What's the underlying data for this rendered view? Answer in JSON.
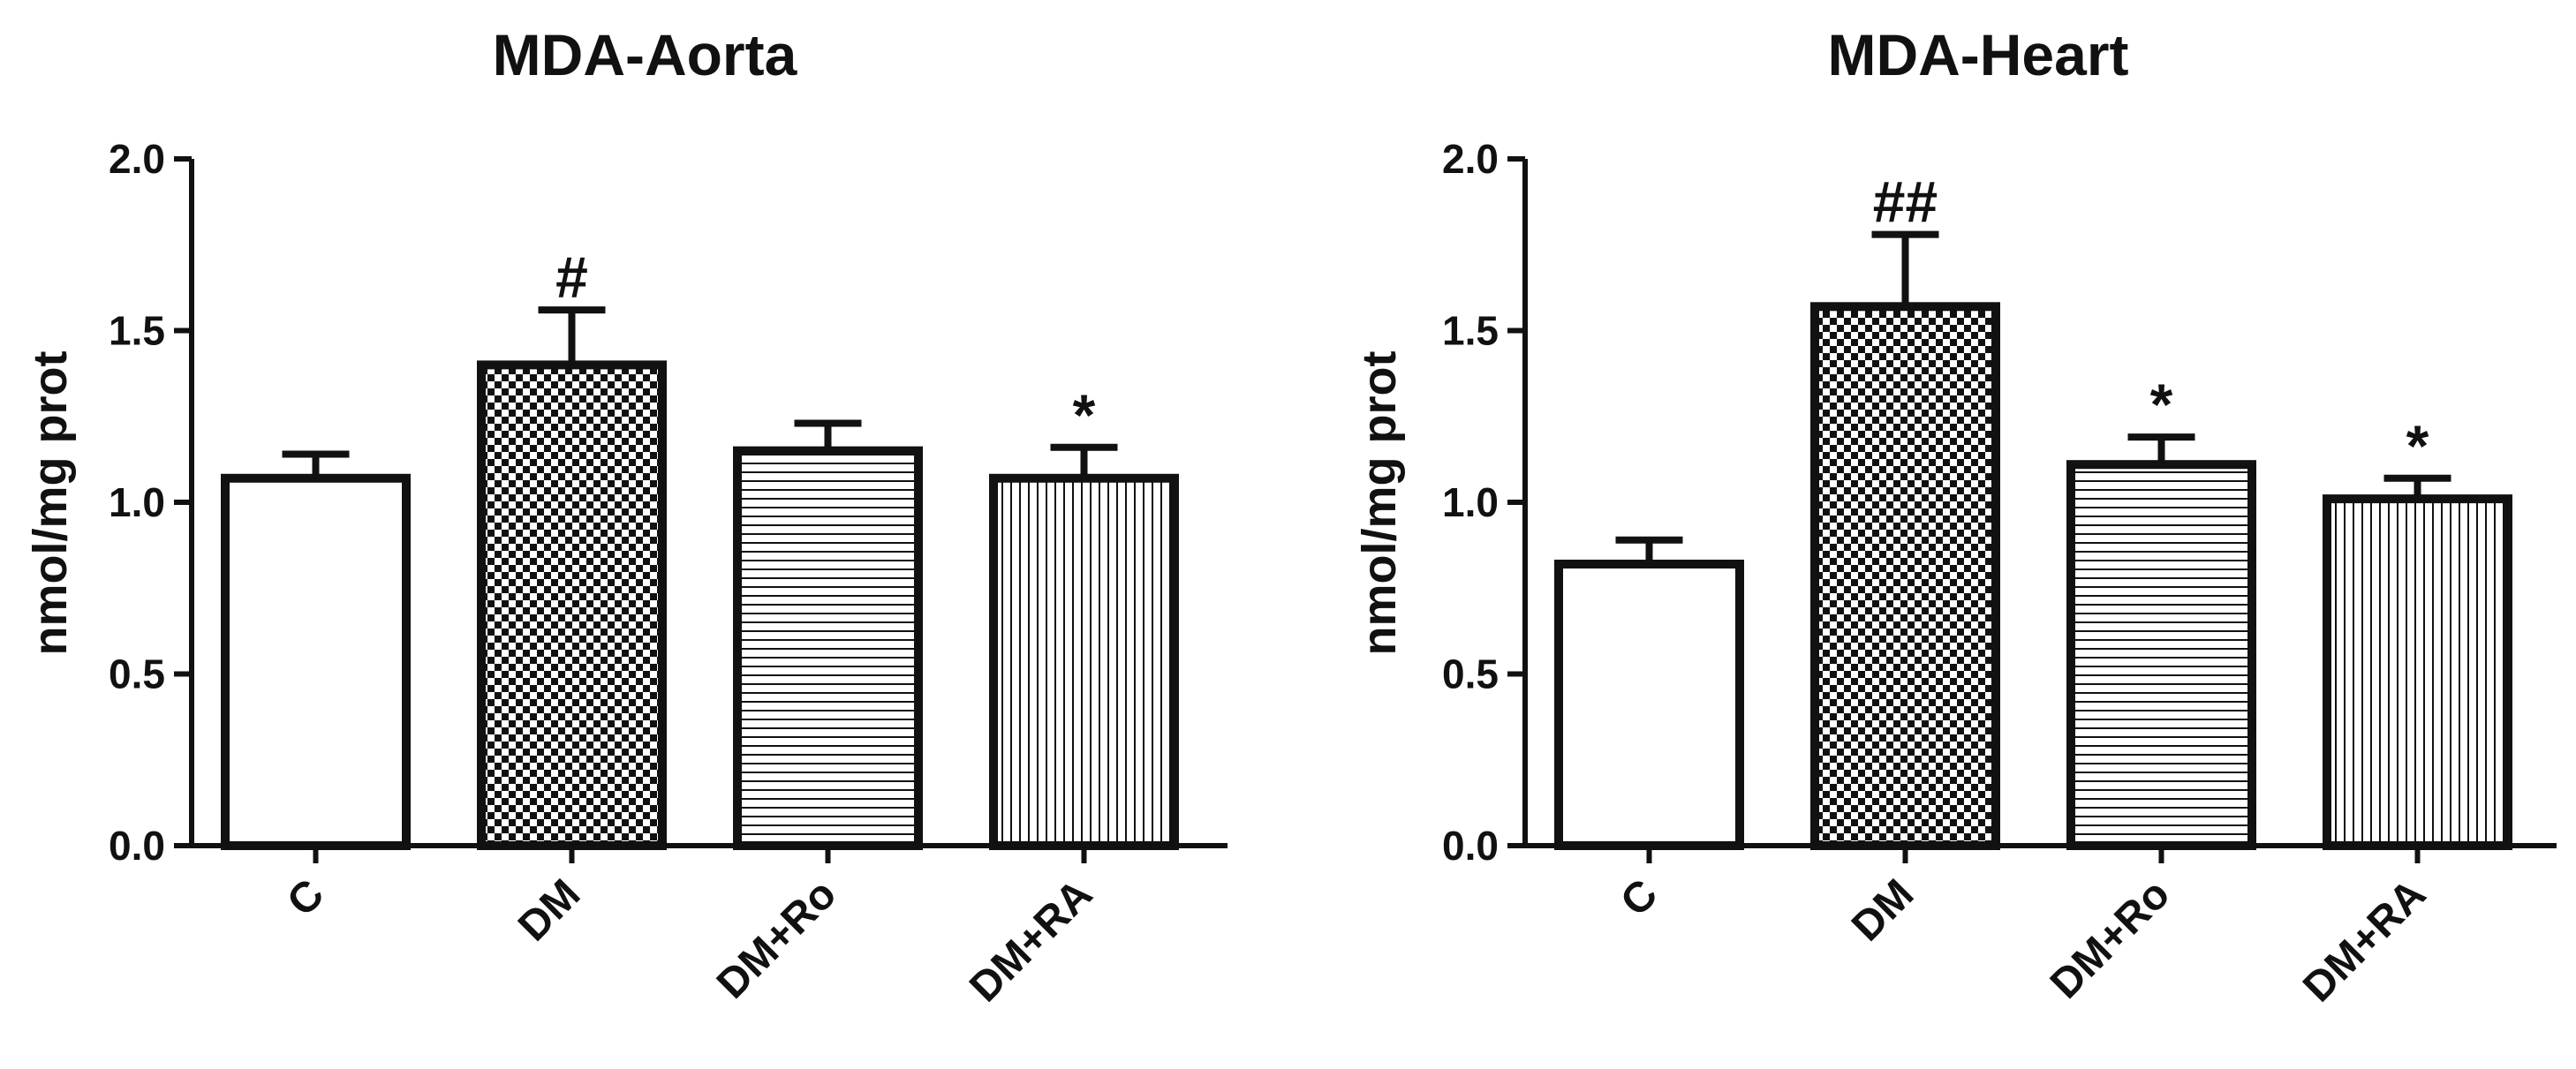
{
  "chart_data": [
    {
      "type": "bar",
      "title": "MDA-Aorta",
      "xlabel": "",
      "ylabel": "nmol/mg prot",
      "ylim": [
        0,
        2.0
      ],
      "yticks": [
        "0.0",
        "0.5",
        "1.0",
        "1.5",
        "2.0"
      ],
      "categories": [
        "C",
        "DM",
        "DM+Ro",
        "DM+RA"
      ],
      "values": [
        1.07,
        1.4,
        1.15,
        1.07
      ],
      "errors": [
        0.07,
        0.16,
        0.08,
        0.09
      ],
      "patterns": [
        "none",
        "checker",
        "horizontal",
        "vertical"
      ],
      "annotations": [
        "",
        "#",
        "",
        "*"
      ]
    },
    {
      "type": "bar",
      "title": "MDA-Heart",
      "xlabel": "",
      "ylabel": "nmol/mg prot",
      "ylim": [
        0,
        2.0
      ],
      "yticks": [
        "0.0",
        "0.5",
        "1.0",
        "1.5",
        "2.0"
      ],
      "categories": [
        "C",
        "DM",
        "DM+Ro",
        "DM+RA"
      ],
      "values": [
        0.82,
        1.57,
        1.11,
        1.01
      ],
      "errors": [
        0.07,
        0.21,
        0.08,
        0.06
      ],
      "patterns": [
        "none",
        "checker",
        "horizontal",
        "vertical"
      ],
      "annotations": [
        "",
        "##",
        "*",
        "*"
      ]
    }
  ],
  "colors": {
    "ink": "#111111",
    "fill": "#ffffff"
  }
}
